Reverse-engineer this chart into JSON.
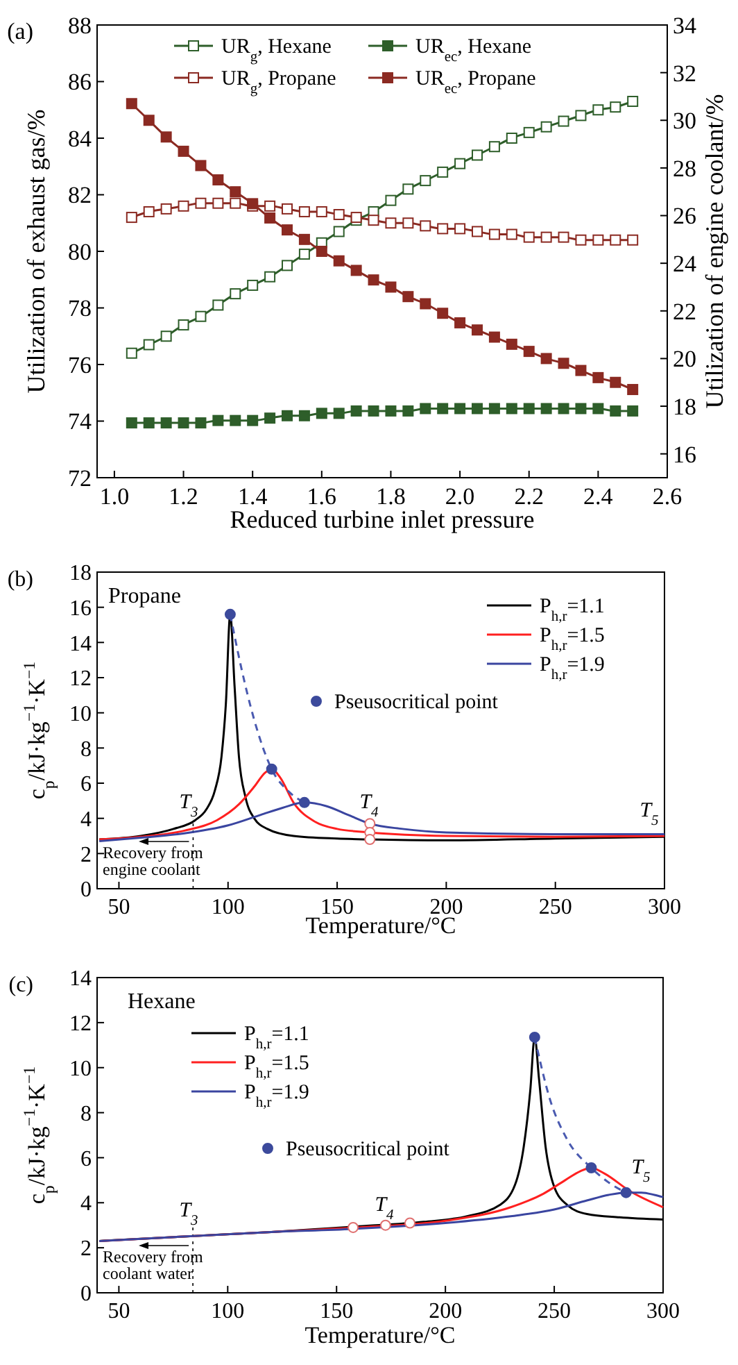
{
  "chart_data": [
    {
      "type": "line",
      "title": "(a)",
      "xlabel": "Reduced turbine inlet pressure",
      "ylabel": "Utilization of exhaust gas/%",
      "y2label": "Utilization of engine coolant/%",
      "marker": "square",
      "legend": "top",
      "x": [
        1.05,
        1.1,
        1.15,
        1.2,
        1.25,
        1.3,
        1.35,
        1.4,
        1.45,
        1.5,
        1.55,
        1.6,
        1.65,
        1.7,
        1.75,
        1.8,
        1.85,
        1.9,
        1.95,
        2.0,
        2.05,
        2.1,
        2.15,
        2.2,
        2.25,
        2.3,
        2.35,
        2.4,
        2.45,
        2.5
      ],
      "xlim": [
        0.95,
        2.6
      ],
      "xticks": [
        {
          "value": 1,
          "label": "1.0"
        },
        1.2,
        1.4,
        1.6,
        1.8,
        {
          "value": 2,
          "label": "2.0"
        },
        2.2,
        2.4,
        2.6
      ],
      "ylim": [
        72,
        88
      ],
      "yticks": [
        72,
        74,
        76,
        78,
        80,
        82,
        84,
        86,
        88
      ],
      "y2lim": [
        15,
        34
      ],
      "y2ticks": [
        16,
        18,
        20,
        22,
        24,
        26,
        28,
        30,
        32,
        34
      ],
      "series": [
        {
          "name": "UR$_{g}$, Hexane",
          "color": "#2e5e2a",
          "values": [
            76.4,
            76.7,
            77.0,
            77.4,
            77.7,
            78.1,
            78.5,
            78.8,
            79.1,
            79.5,
            79.9,
            80.3,
            80.7,
            81.1,
            81.4,
            81.8,
            82.2,
            82.5,
            82.8,
            83.1,
            83.4,
            83.7,
            84.0,
            84.2,
            84.4,
            84.6,
            84.8,
            85.0,
            85.1,
            85.3
          ]
        },
        {
          "name": "UR$_{ec}$, Hexane",
          "color": "#2e5e2a",
          "axis": "y2",
          "values": [
            17.3,
            17.3,
            17.3,
            17.3,
            17.3,
            17.4,
            17.4,
            17.4,
            17.5,
            17.6,
            17.6,
            17.7,
            17.7,
            17.8,
            17.8,
            17.8,
            17.8,
            17.9,
            17.9,
            17.9,
            17.9,
            17.9,
            17.9,
            17.9,
            17.9,
            17.9,
            17.9,
            17.9,
            17.8,
            17.8
          ]
        },
        {
          "name": "UR$_{g}$, Propane",
          "color": "#8b2a22",
          "values": [
            81.2,
            81.4,
            81.5,
            81.6,
            81.7,
            81.7,
            81.7,
            81.6,
            81.6,
            81.5,
            81.4,
            81.4,
            81.3,
            81.2,
            81.1,
            81.0,
            81.0,
            80.9,
            80.8,
            80.8,
            80.7,
            80.6,
            80.6,
            80.5,
            80.5,
            80.5,
            80.4,
            80.4,
            80.4,
            80.4
          ]
        },
        {
          "name": "UR$_{ec}$, Propane",
          "color": "#8b2a22",
          "axis": "y2",
          "values": [
            30.7,
            30.0,
            29.3,
            28.7,
            28.1,
            27.5,
            27.0,
            26.5,
            25.9,
            25.4,
            25.0,
            24.5,
            24.1,
            23.7,
            23.3,
            23.0,
            22.6,
            22.3,
            21.9,
            21.5,
            21.2,
            20.9,
            20.6,
            20.3,
            20.0,
            19.8,
            19.5,
            19.2,
            19.0,
            18.7
          ]
        }
      ]
    },
    {
      "type": "line",
      "title": "(b)",
      "xlabel": "Temperature/°C",
      "ylabel": "c$_{p}$/kJ·kg$^{−1}$·K$^{−1}$",
      "legend": "top right",
      "xlim": [
        40,
        300
      ],
      "xticks": [
        50,
        100,
        150,
        200,
        250,
        300
      ],
      "ylim": [
        0,
        18
      ],
      "yticks": [
        0,
        2,
        4,
        6,
        8,
        10,
        12,
        14,
        16,
        18
      ],
      "series": [
        {
          "name": "P$_{h,r}$=1.1",
          "color": "#000000",
          "x": [
            41,
            60,
            75,
            85,
            90,
            94,
            97,
            99,
            101,
            103,
            105,
            108,
            112,
            118,
            130,
            150,
            165,
            200,
            250,
            300
          ],
          "values": [
            2.8,
            3.0,
            3.4,
            3.9,
            4.5,
            5.6,
            7.5,
            10.5,
            15.6,
            11.5,
            7.5,
            5.2,
            4.0,
            3.4,
            3.0,
            2.85,
            2.8,
            2.75,
            2.85,
            2.95
          ]
        },
        {
          "name": "P$_{h,r}$=1.5",
          "color": "#ff2020",
          "x": [
            41,
            60,
            80,
            95,
            105,
            112,
            117,
            120,
            124,
            130,
            140,
            150,
            165,
            200,
            250,
            300
          ],
          "values": [
            2.8,
            2.95,
            3.3,
            3.9,
            4.8,
            5.8,
            6.6,
            6.8,
            6.3,
            4.9,
            3.8,
            3.4,
            3.2,
            3.0,
            2.95,
            3.0
          ]
        },
        {
          "name": "P$_{h,r}$=1.9",
          "color": "#3a45a0",
          "x": [
            41,
            60,
            80,
            100,
            115,
            125,
            135,
            145,
            155,
            165,
            180,
            200,
            250,
            300
          ],
          "values": [
            2.7,
            2.9,
            3.15,
            3.6,
            4.2,
            4.6,
            4.9,
            4.7,
            4.2,
            3.7,
            3.4,
            3.2,
            3.1,
            3.1
          ]
        },
        {
          "type": "line",
          "line_style": "dashed",
          "color": "#4a5ab0",
          "x": [
            101,
            106,
            112,
            120,
            128,
            135
          ],
          "values": [
            15.6,
            12.6,
            9.6,
            6.8,
            5.5,
            4.9
          ]
        },
        {
          "type": "scatter",
          "marker": "circle",
          "color": "#e07070",
          "x": [
            165,
            165,
            165
          ],
          "values": [
            3.7,
            3.2,
            2.8
          ]
        },
        {
          "type": "scatter",
          "name": "Pseusocritical point",
          "marker": "circle",
          "color": "#3c4a9c",
          "x": [
            101,
            120,
            135
          ],
          "values": [
            15.6,
            6.8,
            4.9
          ]
        }
      ],
      "ref_lines": [
        {
          "axis": "x",
          "value": 84,
          "line_style": "dotted"
        }
      ],
      "annotations": [
        "Propane",
        "Recovery from\nengine coolant",
        "T$_{3}$",
        "T$_{4}$",
        "T$_{5}$"
      ]
    },
    {
      "type": "line",
      "title": "(c)",
      "xlabel": "Temperature/°C",
      "ylabel": "c$_{p}$/kJ·kg$^{−1}$·K$^{−1}$",
      "legend": "top left",
      "xlim": [
        40,
        300
      ],
      "xticks": [
        50,
        100,
        150,
        200,
        250,
        300
      ],
      "ylim": [
        0,
        14
      ],
      "yticks": [
        0,
        2,
        4,
        6,
        8,
        10,
        12,
        14
      ],
      "series": [
        {
          "name": "P$_{h,r}$=1.1",
          "color": "#000000",
          "x": [
            41,
            80,
            120,
            160,
            190,
            210,
            225,
            232,
            236,
            239,
            241,
            243,
            246,
            250,
            256,
            265,
            280,
            300
          ],
          "values": [
            2.3,
            2.5,
            2.7,
            2.95,
            3.15,
            3.4,
            3.9,
            4.8,
            6.5,
            9.0,
            11.35,
            9.5,
            6.5,
            4.7,
            3.9,
            3.5,
            3.35,
            3.25
          ]
        },
        {
          "name": "P$_{h,r}$=1.5",
          "color": "#ff2020",
          "x": [
            41,
            120,
            160,
            200,
            230,
            245,
            255,
            262,
            267,
            273,
            285,
            300
          ],
          "values": [
            2.3,
            2.7,
            2.9,
            3.2,
            3.8,
            4.4,
            5.0,
            5.4,
            5.55,
            5.3,
            4.5,
            3.8
          ]
        },
        {
          "name": "P$_{h,r}$=1.9",
          "color": "#3a45a0",
          "x": [
            41,
            120,
            160,
            200,
            230,
            250,
            265,
            275,
            283,
            290,
            296,
            300
          ],
          "values": [
            2.3,
            2.7,
            2.85,
            3.1,
            3.4,
            3.7,
            4.1,
            4.35,
            4.45,
            4.45,
            4.35,
            4.25
          ]
        },
        {
          "type": "line",
          "line_style": "dashed",
          "color": "#4a5ab0",
          "x": [
            241,
            248,
            256,
            267,
            275,
            283
          ],
          "values": [
            11.35,
            8.6,
            6.8,
            5.55,
            4.9,
            4.45
          ]
        },
        {
          "type": "scatter",
          "marker": "circle",
          "color": "#e07070",
          "x": [
            157.6,
            172.5,
            183.7
          ],
          "values": [
            2.9,
            3.0,
            3.1
          ]
        },
        {
          "type": "scatter",
          "name": "Pseusocritical point",
          "marker": "circle",
          "color": "#3c4a9c",
          "x": [
            241,
            267,
            283
          ],
          "values": [
            11.35,
            5.55,
            4.45
          ]
        }
      ],
      "ref_lines": [
        {
          "axis": "x",
          "value": 84,
          "line_style": "dotted"
        }
      ],
      "annotations": [
        "Hexane",
        "Recovery from\ncoolant water",
        "T$_{3}$",
        "T$_{4}$",
        "T$_{5}$"
      ]
    }
  ]
}
